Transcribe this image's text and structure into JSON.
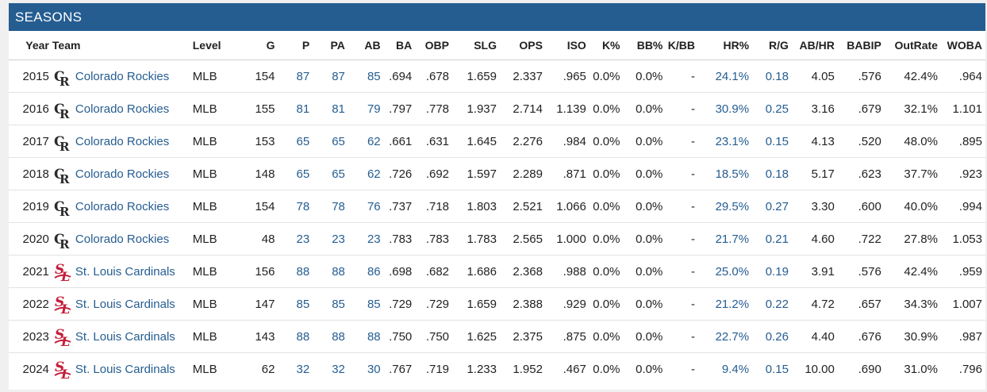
{
  "panel": {
    "title": "SEASONS"
  },
  "columns": [
    "Year",
    "Team",
    "Level",
    "G",
    "P",
    "PA",
    "AB",
    "BA",
    "OBP",
    "SLG",
    "OPS",
    "ISO",
    "K%",
    "BB%",
    "K/BB",
    "HR%",
    "R/G",
    "AB/HR",
    "BABIP",
    "OutRate",
    "WOBA"
  ],
  "colors": {
    "header_bg": "#255d91",
    "link": "#255d91",
    "rockies_logo": "#2b2b2b",
    "cardinals_logo": "#c41e3a"
  },
  "rows": [
    {
      "year": "2015",
      "team": "Colorado Rockies",
      "logo": "rockies-logo",
      "level": "MLB",
      "g": "154",
      "p": "87",
      "pa": "87",
      "ab": "85",
      "ba": ".694",
      "obp": ".678",
      "slg": "1.659",
      "ops": "2.337",
      "iso": ".965",
      "k": "0.0%",
      "bb": "0.0%",
      "kbb": "-",
      "hr": "24.1%",
      "rg": "0.18",
      "abhr": "4.05",
      "babip": ".576",
      "outrate": "42.4%",
      "woba": ".964"
    },
    {
      "year": "2016",
      "team": "Colorado Rockies",
      "logo": "rockies-logo",
      "level": "MLB",
      "g": "155",
      "p": "81",
      "pa": "81",
      "ab": "79",
      "ba": ".797",
      "obp": ".778",
      "slg": "1.937",
      "ops": "2.714",
      "iso": "1.139",
      "k": "0.0%",
      "bb": "0.0%",
      "kbb": "-",
      "hr": "30.9%",
      "rg": "0.25",
      "abhr": "3.16",
      "babip": ".679",
      "outrate": "32.1%",
      "woba": "1.101"
    },
    {
      "year": "2017",
      "team": "Colorado Rockies",
      "logo": "rockies-logo",
      "level": "MLB",
      "g": "153",
      "p": "65",
      "pa": "65",
      "ab": "62",
      "ba": ".661",
      "obp": ".631",
      "slg": "1.645",
      "ops": "2.276",
      "iso": ".984",
      "k": "0.0%",
      "bb": "0.0%",
      "kbb": "-",
      "hr": "23.1%",
      "rg": "0.15",
      "abhr": "4.13",
      "babip": ".520",
      "outrate": "48.0%",
      "woba": ".895"
    },
    {
      "year": "2018",
      "team": "Colorado Rockies",
      "logo": "rockies-logo",
      "level": "MLB",
      "g": "148",
      "p": "65",
      "pa": "65",
      "ab": "62",
      "ba": ".726",
      "obp": ".692",
      "slg": "1.597",
      "ops": "2.289",
      "iso": ".871",
      "k": "0.0%",
      "bb": "0.0%",
      "kbb": "-",
      "hr": "18.5%",
      "rg": "0.18",
      "abhr": "5.17",
      "babip": ".623",
      "outrate": "37.7%",
      "woba": ".923"
    },
    {
      "year": "2019",
      "team": "Colorado Rockies",
      "logo": "rockies-logo",
      "level": "MLB",
      "g": "154",
      "p": "78",
      "pa": "78",
      "ab": "76",
      "ba": ".737",
      "obp": ".718",
      "slg": "1.803",
      "ops": "2.521",
      "iso": "1.066",
      "k": "0.0%",
      "bb": "0.0%",
      "kbb": "-",
      "hr": "29.5%",
      "rg": "0.27",
      "abhr": "3.30",
      "babip": ".600",
      "outrate": "40.0%",
      "woba": ".994"
    },
    {
      "year": "2020",
      "team": "Colorado Rockies",
      "logo": "rockies-logo",
      "level": "MLB",
      "g": "48",
      "p": "23",
      "pa": "23",
      "ab": "23",
      "ba": ".783",
      "obp": ".783",
      "slg": "1.783",
      "ops": "2.565",
      "iso": "1.000",
      "k": "0.0%",
      "bb": "0.0%",
      "kbb": "-",
      "hr": "21.7%",
      "rg": "0.21",
      "abhr": "4.60",
      "babip": ".722",
      "outrate": "27.8%",
      "woba": "1.053"
    },
    {
      "year": "2021",
      "team": "St. Louis Cardinals",
      "logo": "cardinals-logo",
      "level": "MLB",
      "g": "156",
      "p": "88",
      "pa": "88",
      "ab": "86",
      "ba": ".698",
      "obp": ".682",
      "slg": "1.686",
      "ops": "2.368",
      "iso": ".988",
      "k": "0.0%",
      "bb": "0.0%",
      "kbb": "-",
      "hr": "25.0%",
      "rg": "0.19",
      "abhr": "3.91",
      "babip": ".576",
      "outrate": "42.4%",
      "woba": ".959"
    },
    {
      "year": "2022",
      "team": "St. Louis Cardinals",
      "logo": "cardinals-logo",
      "level": "MLB",
      "g": "147",
      "p": "85",
      "pa": "85",
      "ab": "85",
      "ba": ".729",
      "obp": ".729",
      "slg": "1.659",
      "ops": "2.388",
      "iso": ".929",
      "k": "0.0%",
      "bb": "0.0%",
      "kbb": "-",
      "hr": "21.2%",
      "rg": "0.22",
      "abhr": "4.72",
      "babip": ".657",
      "outrate": "34.3%",
      "woba": "1.007"
    },
    {
      "year": "2023",
      "team": "St. Louis Cardinals",
      "logo": "cardinals-logo",
      "level": "MLB",
      "g": "143",
      "p": "88",
      "pa": "88",
      "ab": "88",
      "ba": ".750",
      "obp": ".750",
      "slg": "1.625",
      "ops": "2.375",
      "iso": ".875",
      "k": "0.0%",
      "bb": "0.0%",
      "kbb": "-",
      "hr": "22.7%",
      "rg": "0.26",
      "abhr": "4.40",
      "babip": ".676",
      "outrate": "30.9%",
      "woba": ".987"
    },
    {
      "year": "2024",
      "team": "St. Louis Cardinals",
      "logo": "cardinals-logo",
      "level": "MLB",
      "g": "62",
      "p": "32",
      "pa": "32",
      "ab": "30",
      "ba": ".767",
      "obp": ".719",
      "slg": "1.233",
      "ops": "1.952",
      "iso": ".467",
      "k": "0.0%",
      "bb": "0.0%",
      "kbb": "-",
      "hr": "9.4%",
      "rg": "0.15",
      "abhr": "10.00",
      "babip": ".690",
      "outrate": "31.0%",
      "woba": ".796"
    }
  ]
}
